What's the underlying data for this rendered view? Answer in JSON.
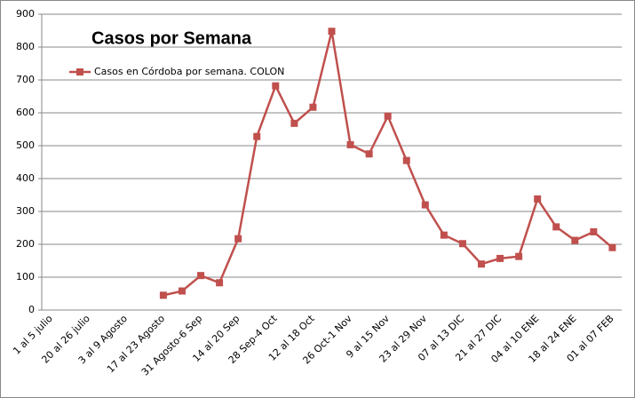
{
  "chart_data": {
    "type": "line",
    "title": "Casos por Semana",
    "categories": [
      "1 al 5 julio",
      null,
      "20 al 26 julio",
      null,
      "3 al 9 Agosto",
      null,
      "17 al 23 Agosto",
      null,
      "31 Agosto-6 Sep",
      null,
      "14 al 20 Sep",
      null,
      "28 Sep-4 Oct",
      null,
      "12 al 18 Oct",
      null,
      "26 Oct-1 Nov",
      null,
      "9 al 15 Nov",
      null,
      "23 al 29 Nov",
      null,
      "07 al 13 DIC",
      null,
      "21 al 27 DIC",
      null,
      "04 al 10 ENE",
      null,
      "18 al 24 ENE",
      null,
      "01 al 07 FEB"
    ],
    "series": [
      {
        "name": "Casos en Córdoba por semana. COLON",
        "color": "#c0504d",
        "values": [
          null,
          null,
          null,
          null,
          null,
          null,
          45,
          58,
          105,
          83,
          217,
          528,
          682,
          568,
          617,
          848,
          503,
          475,
          590,
          455,
          320,
          228,
          202,
          140,
          157,
          163,
          338,
          253,
          212,
          238,
          190
        ]
      }
    ],
    "ylim": [
      0,
      900
    ],
    "yticks": [
      0,
      100,
      200,
      300,
      400,
      500,
      600,
      700,
      800,
      900
    ],
    "grid": true,
    "legend": "top-left"
  }
}
